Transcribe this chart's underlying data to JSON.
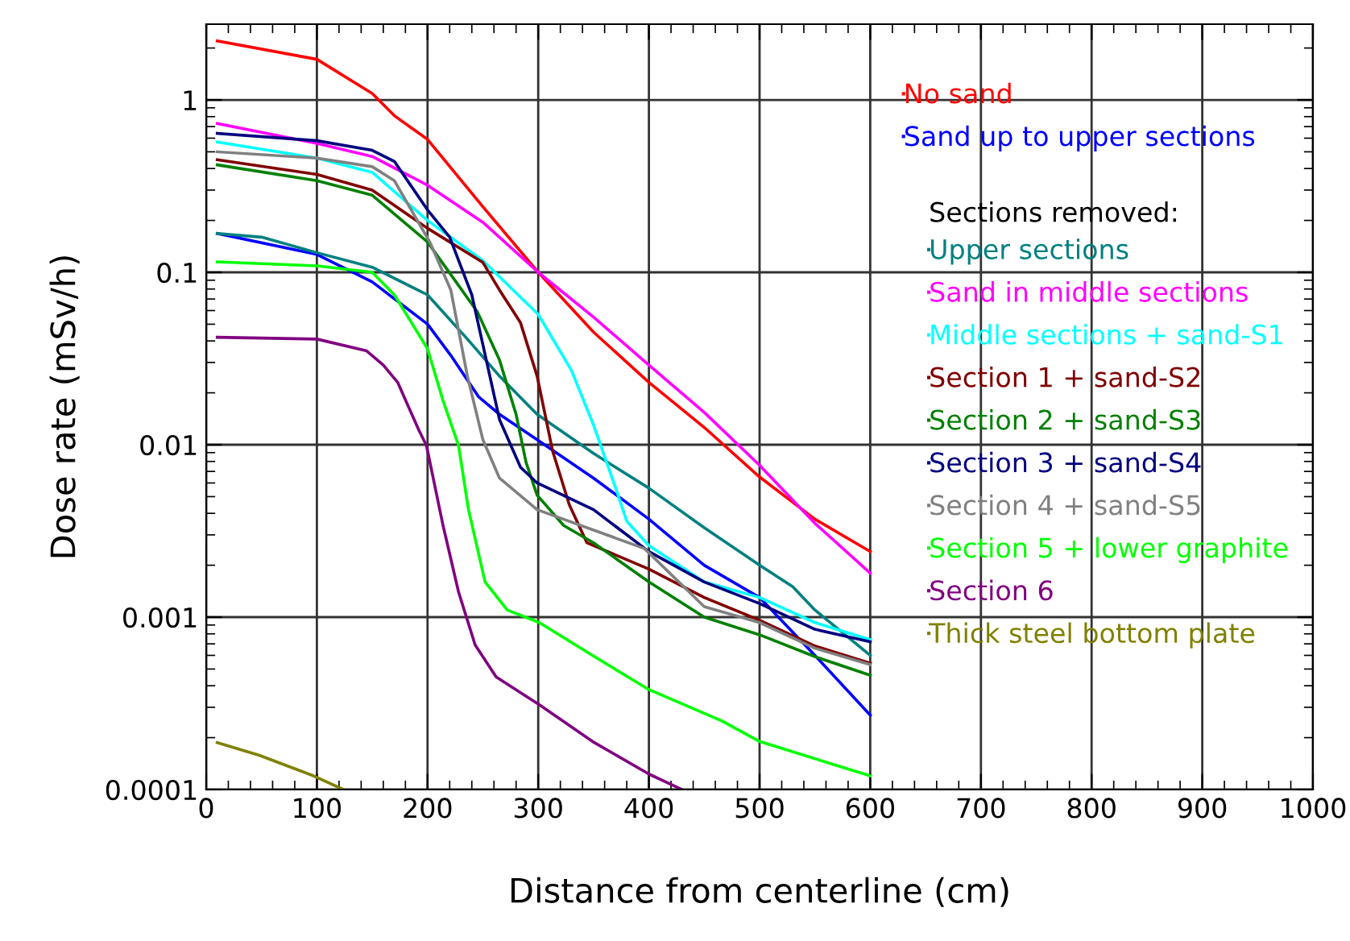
{
  "chart_data": {
    "type": "line",
    "xlabel": "Distance from centerline (cm)",
    "ylabel": "Dose rate (mSv/h)",
    "legend_title": "Sections removed:",
    "log": "y",
    "grid": true,
    "legend": "top right",
    "line_style": "solid",
    "marker": "none",
    "xlim": [
      0,
      1000
    ],
    "xticks": [
      0,
      100,
      200,
      300,
      400,
      500,
      600,
      700,
      800,
      900,
      1000
    ],
    "ylim": [
      0.0001,
      2.75
    ],
    "yticks": [
      0.0001,
      0.001,
      0.01,
      0.1,
      1
    ],
    "series": [
      {
        "name": "No sand",
        "color": "#ff0000",
        "x": [
          10,
          100,
          150,
          170,
          200,
          250,
          300,
          350,
          400,
          450,
          500,
          550,
          600
        ],
        "values": [
          2.2,
          1.72,
          1.09,
          0.81,
          0.59,
          0.24,
          0.1,
          0.045,
          0.023,
          0.0126,
          0.0065,
          0.0037,
          0.0024
        ]
      },
      {
        "name": "Sand up to upper sections",
        "color": "#0000ff",
        "x": [
          10,
          100,
          150,
          200,
          221,
          246,
          265,
          299,
          350,
          400,
          450,
          500,
          550,
          600
        ],
        "values": [
          0.168,
          0.127,
          0.088,
          0.05,
          0.033,
          0.019,
          0.015,
          0.0107,
          0.0064,
          0.0037,
          0.002,
          0.0013,
          0.0006,
          0.00027
        ]
      },
      {
        "name": "Upper sections",
        "color": "#008080",
        "x": [
          10,
          50,
          100,
          150,
          200,
          236,
          265,
          299,
          350,
          400,
          450,
          500,
          530,
          550,
          600
        ],
        "values": [
          0.168,
          0.16,
          0.13,
          0.107,
          0.074,
          0.041,
          0.025,
          0.015,
          0.0089,
          0.0056,
          0.0033,
          0.002,
          0.0015,
          0.0011,
          0.0006
        ]
      },
      {
        "name": "Sand in middle sections",
        "color": "#ff00ff",
        "x": [
          10,
          100,
          150,
          200,
          250,
          300,
          350,
          400,
          450,
          500,
          550,
          600
        ],
        "values": [
          0.73,
          0.56,
          0.47,
          0.32,
          0.195,
          0.1,
          0.055,
          0.029,
          0.0154,
          0.0076,
          0.0035,
          0.0018
        ]
      },
      {
        "name": "Middle sections + sand-S1",
        "color": "#00ffff",
        "x": [
          10,
          100,
          150,
          200,
          250,
          300,
          330,
          350,
          370,
          380,
          400,
          450,
          500,
          550,
          600
        ],
        "values": [
          0.57,
          0.46,
          0.38,
          0.2,
          0.117,
          0.057,
          0.027,
          0.013,
          0.0056,
          0.0036,
          0.0026,
          0.0016,
          0.0013,
          0.00093,
          0.00074
        ]
      },
      {
        "name": "Section 1 + sand-S2",
        "color": "#800000",
        "x": [
          10,
          100,
          150,
          200,
          250,
          265,
          284,
          299,
          313,
          328,
          344,
          400,
          450,
          500,
          550,
          600
        ],
        "values": [
          0.45,
          0.37,
          0.3,
          0.18,
          0.114,
          0.079,
          0.051,
          0.025,
          0.0092,
          0.0045,
          0.0027,
          0.0019,
          0.0013,
          0.00096,
          0.00068,
          0.00054
        ]
      },
      {
        "name": "Section 2 + sand-S3",
        "color": "#008000",
        "x": [
          10,
          100,
          150,
          200,
          245,
          265,
          280,
          289,
          299,
          323,
          350,
          400,
          450,
          500,
          550,
          600
        ],
        "values": [
          0.42,
          0.34,
          0.28,
          0.15,
          0.059,
          0.031,
          0.015,
          0.0079,
          0.0051,
          0.0034,
          0.0027,
          0.0016,
          0.001,
          0.00079,
          0.00059,
          0.00046
        ]
      },
      {
        "name": "Section 3 + sand-S4",
        "color": "#000080",
        "x": [
          10,
          100,
          150,
          170,
          200,
          220,
          240,
          265,
          284,
          299,
          350,
          400,
          450,
          500,
          550,
          600
        ],
        "values": [
          0.64,
          0.58,
          0.51,
          0.44,
          0.23,
          0.16,
          0.074,
          0.014,
          0.0074,
          0.006,
          0.0042,
          0.0024,
          0.0016,
          0.0012,
          0.00085,
          0.00072
        ]
      },
      {
        "name": "Section 4 + sand-S5",
        "color": "#808080",
        "x": [
          10,
          100,
          150,
          170,
          202,
          221,
          236,
          250,
          265,
          299,
          396,
          450,
          500,
          550,
          600
        ],
        "values": [
          0.5,
          0.46,
          0.41,
          0.34,
          0.15,
          0.079,
          0.025,
          0.0107,
          0.0064,
          0.0042,
          0.0025,
          0.00115,
          0.00093,
          0.00066,
          0.00053
        ]
      },
      {
        "name": "Section 5 + lower graphite",
        "color": "#00ff00",
        "x": [
          10,
          100,
          150,
          170,
          200,
          214,
          228,
          237,
          252,
          272,
          301,
          349,
          400,
          466,
          500,
          600
        ],
        "values": [
          0.115,
          0.109,
          0.1,
          0.074,
          0.036,
          0.018,
          0.0099,
          0.0042,
          0.0016,
          0.0011,
          0.00093,
          0.0006,
          0.00038,
          0.00025,
          0.00019,
          0.00012
        ]
      },
      {
        "name": "Section 6",
        "color": "#800080",
        "x": [
          10,
          100,
          145,
          160,
          173,
          192,
          199,
          214,
          228,
          243,
          262,
          301,
          349,
          400,
          430
        ],
        "values": [
          0.042,
          0.041,
          0.035,
          0.029,
          0.023,
          0.0122,
          0.0099,
          0.0034,
          0.0014,
          0.00069,
          0.00045,
          0.00031,
          0.00019,
          0.000123,
          0.0001
        ]
      },
      {
        "name": "Thick steel bottom plate",
        "color": "#808000",
        "x": [
          10,
          48,
          97,
          124
        ],
        "values": [
          0.000187,
          0.000158,
          0.00012,
          0.0001
        ]
      }
    ]
  }
}
